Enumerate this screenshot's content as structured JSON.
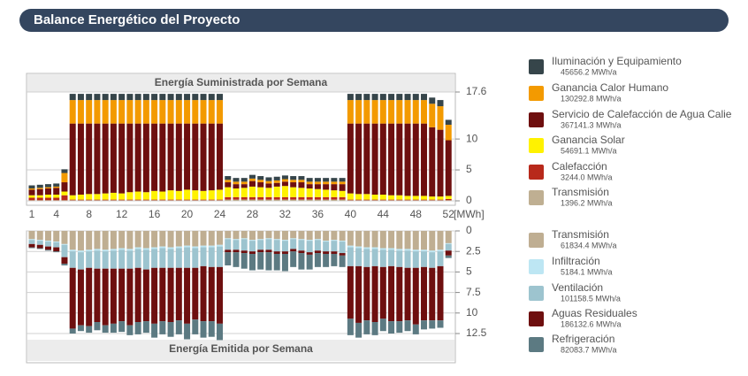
{
  "header": {
    "title": "Balance Energético del Proyecto"
  },
  "chart_data": [
    {
      "type": "bar",
      "stacked": true,
      "title": "Energía Suministrada por Semana",
      "x_unit": "[MWh]",
      "categories": [
        "1",
        null,
        null,
        "4",
        null,
        null,
        null,
        "8",
        null,
        null,
        null,
        "12",
        null,
        null,
        null,
        "16",
        null,
        null,
        null,
        "20",
        null,
        null,
        null,
        "24",
        null,
        null,
        null,
        "28",
        null,
        null,
        null,
        "32",
        null,
        null,
        null,
        "36",
        null,
        null,
        null,
        "40",
        null,
        null,
        null,
        "44",
        null,
        null,
        null,
        "48",
        null,
        null,
        null,
        "52"
      ],
      "ylim": [
        0,
        17.6
      ],
      "yticks": [
        0,
        5,
        10,
        17.6
      ],
      "y_reversed": false,
      "grid": true,
      "series": [
        {
          "name": "Iluminación y Equipamiento",
          "annual_label": "45656.2 MWh/a",
          "color": "#36454a",
          "values": [
            0.5,
            0.5,
            0.5,
            0.5,
            0.6,
            1.0,
            1.0,
            1.0,
            1.0,
            1.0,
            1.0,
            1.0,
            1.0,
            1.0,
            1.0,
            1.0,
            1.0,
            1.0,
            1.0,
            1.0,
            1.0,
            1.0,
            1.0,
            1.0,
            0.6,
            0.6,
            0.6,
            0.6,
            0.6,
            0.6,
            0.6,
            0.6,
            0.6,
            0.6,
            0.6,
            0.6,
            0.6,
            0.6,
            0.6,
            1.0,
            1.0,
            1.0,
            1.0,
            1.0,
            1.0,
            1.0,
            1.0,
            1.0,
            1.0,
            1.0,
            1.0,
            0.8
          ]
        },
        {
          "name": "Ganancia Calor Humano",
          "annual_label": "130292.8 MWh/a",
          "color": "#f39a00",
          "values": [
            0.2,
            0.2,
            0.2,
            0.2,
            1.5,
            3.8,
            3.8,
            3.8,
            3.8,
            3.8,
            3.8,
            3.8,
            3.8,
            3.8,
            3.8,
            3.8,
            3.8,
            3.8,
            3.8,
            3.8,
            3.8,
            3.8,
            3.8,
            3.8,
            0.4,
            0.4,
            0.4,
            0.4,
            0.4,
            0.4,
            0.4,
            0.4,
            0.4,
            0.4,
            0.4,
            0.4,
            0.4,
            0.4,
            0.4,
            3.8,
            3.8,
            3.8,
            3.8,
            3.8,
            3.8,
            3.8,
            3.8,
            3.8,
            3.8,
            3.8,
            3.8,
            2.5
          ]
        },
        {
          "name": "Servicio de Calefacción de Agua Calie",
          "annual_label": "367141.3 MWh/a",
          "color": "#6e0f0f",
          "values": [
            0.9,
            1.0,
            1.0,
            1.1,
            1.5,
            11.6,
            11.5,
            11.4,
            11.4,
            11.3,
            11.2,
            11.3,
            11.1,
            11.0,
            11.1,
            10.9,
            11.0,
            10.8,
            10.9,
            10.7,
            10.8,
            10.9,
            10.8,
            10.7,
            0.8,
            0.7,
            0.6,
            0.9,
            0.8,
            0.7,
            0.6,
            0.7,
            0.8,
            0.9,
            0.7,
            0.8,
            0.9,
            1.0,
            1.1,
            11.3,
            11.4,
            11.4,
            11.5,
            11.5,
            11.6,
            11.6,
            11.7,
            11.7,
            11.7,
            11.2,
            10.8,
            9.0
          ]
        },
        {
          "name": "Ganancia Solar",
          "annual_label": "54691.1 MWh/a",
          "color": "#fff200",
          "values": [
            0.4,
            0.4,
            0.5,
            0.5,
            0.6,
            0.7,
            0.8,
            0.9,
            0.9,
            1.0,
            1.1,
            1.0,
            1.2,
            1.3,
            1.2,
            1.4,
            1.3,
            1.5,
            1.4,
            1.6,
            1.5,
            1.4,
            1.5,
            1.6,
            1.6,
            1.4,
            1.5,
            1.7,
            1.6,
            1.5,
            1.7,
            1.8,
            1.6,
            1.5,
            1.4,
            1.3,
            1.2,
            1.1,
            1.0,
            1.0,
            0.9,
            0.9,
            0.8,
            0.8,
            0.7,
            0.7,
            0.6,
            0.6,
            0.6,
            0.5,
            0.5,
            0.5
          ]
        },
        {
          "name": "Calefacción",
          "annual_label": "3244.0 MWh/a",
          "color": "#b8291b",
          "values": [
            0.4,
            0.4,
            0.4,
            0.4,
            0.8,
            0.1,
            0.1,
            0.1,
            0.1,
            0.1,
            0.1,
            0.1,
            0.1,
            0.1,
            0.1,
            0.1,
            0.1,
            0.1,
            0.1,
            0.1,
            0.1,
            0.1,
            0.1,
            0.1,
            0.4,
            0.4,
            0.4,
            0.4,
            0.4,
            0.4,
            0.4,
            0.4,
            0.4,
            0.4,
            0.4,
            0.4,
            0.4,
            0.4,
            0.4,
            0.1,
            0.1,
            0.1,
            0.1,
            0.1,
            0.1,
            0.1,
            0.1,
            0.1,
            0.1,
            0.1,
            0.1,
            0.2
          ]
        },
        {
          "name": "Transmisión",
          "annual_label": "1396.2 MWh/a",
          "color": "#bfaf92",
          "values": [
            0.1,
            0.1,
            0.1,
            0.1,
            0.1,
            0.1,
            0.1,
            0.1,
            0.1,
            0.1,
            0.1,
            0.1,
            0.1,
            0.1,
            0.1,
            0.1,
            0.1,
            0.1,
            0.1,
            0.1,
            0.1,
            0.1,
            0.1,
            0.1,
            0.2,
            0.2,
            0.2,
            0.2,
            0.2,
            0.2,
            0.2,
            0.2,
            0.2,
            0.2,
            0.2,
            0.2,
            0.2,
            0.2,
            0.2,
            0.1,
            0.1,
            0.1,
            0.1,
            0.1,
            0.1,
            0.1,
            0.1,
            0.1,
            0.1,
            0.1,
            0.1,
            0.1
          ]
        }
      ]
    },
    {
      "type": "bar",
      "stacked": true,
      "title": "Energía Emitida por Semana",
      "ylim": [
        0,
        12.5
      ],
      "yticks": [
        0,
        2.5,
        5,
        7.5,
        10,
        12.5
      ],
      "y_reversed": true,
      "grid": true,
      "series": [
        {
          "name": "Transmisión",
          "annual_label": "61834.4 MWh/a",
          "color": "#bfae92",
          "values": [
            1.0,
            1.1,
            1.2,
            1.3,
            1.6,
            2.3,
            2.4,
            2.3,
            2.2,
            2.3,
            2.2,
            2.1,
            2.2,
            2.0,
            2.1,
            2.0,
            1.9,
            2.0,
            1.9,
            1.8,
            1.9,
            1.8,
            1.8,
            1.7,
            0.9,
            1.0,
            0.9,
            1.1,
            1.0,
            0.9,
            1.0,
            1.1,
            0.9,
            1.0,
            1.1,
            1.0,
            1.2,
            1.1,
            1.2,
            1.8,
            1.9,
            2.0,
            2.0,
            2.1,
            2.1,
            2.2,
            2.2,
            2.3,
            2.3,
            2.4,
            2.3,
            1.5
          ]
        },
        {
          "name": "Infiltración",
          "annual_label": "5184.1 MWh/a",
          "color": "#bde6f3",
          "values": [
            0.1,
            0.1,
            0.1,
            0.1,
            0.1,
            0.2,
            0.2,
            0.2,
            0.2,
            0.2,
            0.2,
            0.2,
            0.2,
            0.2,
            0.2,
            0.2,
            0.2,
            0.2,
            0.2,
            0.2,
            0.2,
            0.2,
            0.2,
            0.2,
            0.1,
            0.1,
            0.1,
            0.1,
            0.1,
            0.1,
            0.1,
            0.1,
            0.1,
            0.1,
            0.1,
            0.1,
            0.1,
            0.1,
            0.1,
            0.2,
            0.2,
            0.2,
            0.2,
            0.2,
            0.2,
            0.2,
            0.2,
            0.2,
            0.2,
            0.2,
            0.2,
            0.1
          ]
        },
        {
          "name": "Ventilación",
          "annual_label": "101158.5 MWh/a",
          "color": "#9dc4cf",
          "values": [
            0.5,
            0.5,
            0.6,
            0.6,
            1.5,
            2.0,
            2.1,
            2.0,
            2.2,
            2.1,
            2.2,
            2.3,
            2.2,
            2.3,
            2.4,
            2.3,
            2.4,
            2.3,
            2.4,
            2.5,
            2.4,
            2.3,
            2.4,
            2.5,
            1.3,
            1.2,
            1.4,
            1.3,
            1.2,
            1.3,
            1.4,
            1.3,
            1.2,
            1.3,
            1.4,
            1.3,
            1.2,
            1.3,
            1.4,
            2.3,
            2.2,
            2.2,
            2.1,
            2.1,
            2.0,
            2.0,
            2.1,
            2.0,
            1.9,
            1.9,
            1.8,
            0.8
          ]
        },
        {
          "name": "Aguas Residuales",
          "annual_label": "186132.6 MWh/a",
          "color": "#6e0f0f",
          "values": [
            0.4,
            0.4,
            0.4,
            0.5,
            0.8,
            7.4,
            6.8,
            7.1,
            6.5,
            6.9,
            6.7,
            6.4,
            6.9,
            6.6,
            6.3,
            6.8,
            6.5,
            6.6,
            6.4,
            6.8,
            6.3,
            6.7,
            6.6,
            6.9,
            0.3,
            0.3,
            0.3,
            0.3,
            0.3,
            0.3,
            0.3,
            0.3,
            0.3,
            0.3,
            0.3,
            0.3,
            0.3,
            0.3,
            0.3,
            6.4,
            6.9,
            6.5,
            6.8,
            6.3,
            6.7,
            6.6,
            6.4,
            6.9,
            6.5,
            6.4,
            6.6,
            0.6
          ]
        },
        {
          "name": "Refrigeración",
          "annual_label": "82083.7 MWh/a",
          "color": "#5c7a82",
          "values": [
            0.1,
            0.1,
            0.1,
            0.1,
            0.2,
            0.6,
            0.7,
            0.8,
            1.0,
            0.9,
            1.1,
            1.3,
            1.2,
            1.5,
            1.4,
            1.7,
            1.6,
            1.8,
            1.7,
            1.9,
            1.8,
            2.0,
            1.9,
            2.0,
            1.6,
            1.8,
            1.9,
            2.0,
            2.1,
            2.2,
            2.0,
            2.1,
            1.9,
            2.0,
            1.8,
            1.7,
            1.6,
            1.5,
            1.4,
            2.0,
            1.8,
            1.7,
            1.6,
            1.5,
            1.5,
            1.4,
            1.3,
            1.2,
            1.1,
            1.0,
            0.9,
            0.3
          ]
        }
      ]
    }
  ]
}
